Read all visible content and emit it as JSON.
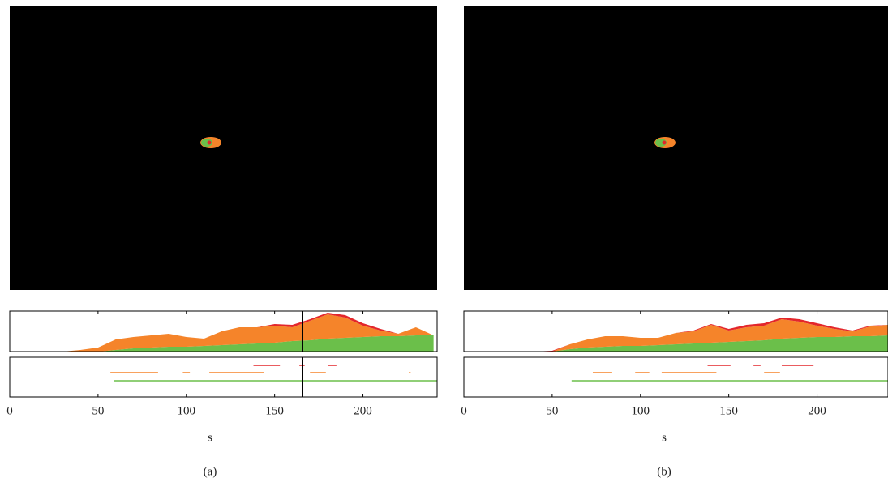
{
  "chart_data": [
    {
      "type": "area",
      "xlim": [
        0,
        242
      ],
      "ylim": [
        0,
        50
      ],
      "vline": 166,
      "x": [
        0,
        10,
        20,
        30,
        40,
        50,
        60,
        70,
        80,
        90,
        100,
        110,
        120,
        130,
        140,
        150,
        160,
        170,
        180,
        190,
        200,
        210,
        220,
        230,
        240
      ],
      "series": [
        {
          "color": "#6bbf4a",
          "values": [
            0,
            0,
            0,
            0,
            0,
            0,
            2,
            4,
            5,
            6,
            6,
            7,
            8,
            9,
            10,
            11,
            13,
            14,
            16,
            17,
            18,
            19,
            19,
            20,
            20
          ]
        },
        {
          "color": "#f5842a",
          "values": [
            0,
            0,
            0,
            0,
            2,
            5,
            13,
            14,
            15,
            16,
            12,
            9,
            17,
            21,
            20,
            21,
            17,
            24,
            30,
            25,
            14,
            7,
            3,
            10,
            0
          ]
        },
        {
          "color": "#e3262b",
          "values": [
            0,
            0,
            0,
            0,
            0,
            0,
            0,
            0,
            0,
            0,
            0,
            0,
            0,
            0,
            0,
            2,
            3,
            2,
            2,
            3,
            3,
            2,
            0,
            0,
            0
          ]
        }
      ]
    },
    {
      "type": "timeline",
      "xlim": [
        0,
        242
      ],
      "xticks": [
        0,
        50,
        100,
        150,
        200
      ],
      "xlabel": "s",
      "caption": "(a)",
      "vline": 166,
      "series": [
        {
          "color": "#e3262b",
          "segments": [
            [
              138,
              153
            ],
            [
              164,
              167
            ],
            [
              180,
              185
            ]
          ]
        },
        {
          "color": "#f5842a",
          "segments": [
            [
              57,
              84
            ],
            [
              98,
              102
            ],
            [
              113,
              144
            ],
            [
              170,
              179
            ],
            [
              226,
              227
            ]
          ]
        },
        {
          "color": "#6bbf4a",
          "segments": [
            [
              59,
              242
            ]
          ]
        }
      ]
    },
    {
      "type": "area",
      "xlim": [
        0,
        242
      ],
      "ylim": [
        0,
        50
      ],
      "vline": 166,
      "x": [
        0,
        10,
        20,
        30,
        40,
        50,
        60,
        70,
        80,
        90,
        100,
        110,
        120,
        130,
        140,
        150,
        160,
        170,
        180,
        190,
        200,
        210,
        220,
        230,
        240
      ],
      "series": [
        {
          "color": "#6bbf4a",
          "values": [
            0,
            0,
            0,
            0,
            0,
            0,
            3,
            5,
            6,
            7,
            7,
            8,
            9,
            10,
            11,
            12,
            13,
            14,
            16,
            17,
            18,
            18,
            19,
            19,
            20
          ]
        },
        {
          "color": "#f5842a",
          "values": [
            0,
            0,
            0,
            0,
            0,
            0,
            6,
            10,
            13,
            12,
            10,
            9,
            14,
            15,
            22,
            14,
            17,
            18,
            24,
            20,
            14,
            10,
            6,
            12,
            13
          ]
        },
        {
          "color": "#e3262b",
          "values": [
            0,
            0,
            0,
            0,
            0,
            1,
            0,
            0,
            0,
            0,
            0,
            0,
            0,
            1,
            1,
            2,
            3,
            3,
            2,
            3,
            3,
            2,
            1,
            1,
            0
          ]
        }
      ]
    },
    {
      "type": "timeline",
      "xlim": [
        0,
        242
      ],
      "xticks": [
        0,
        50,
        100,
        150,
        200
      ],
      "xlabel": "s",
      "caption": "(b)",
      "vline": 166,
      "series": [
        {
          "color": "#e3262b",
          "segments": [
            [
              138,
              151
            ],
            [
              164,
              168
            ],
            [
              180,
              198
            ]
          ]
        },
        {
          "color": "#f5842a",
          "segments": [
            [
              73,
              84
            ],
            [
              97,
              105
            ],
            [
              112,
              143
            ],
            [
              170,
              179
            ]
          ]
        },
        {
          "color": "#6bbf4a",
          "segments": [
            [
              61,
              241
            ]
          ]
        }
      ]
    }
  ]
}
